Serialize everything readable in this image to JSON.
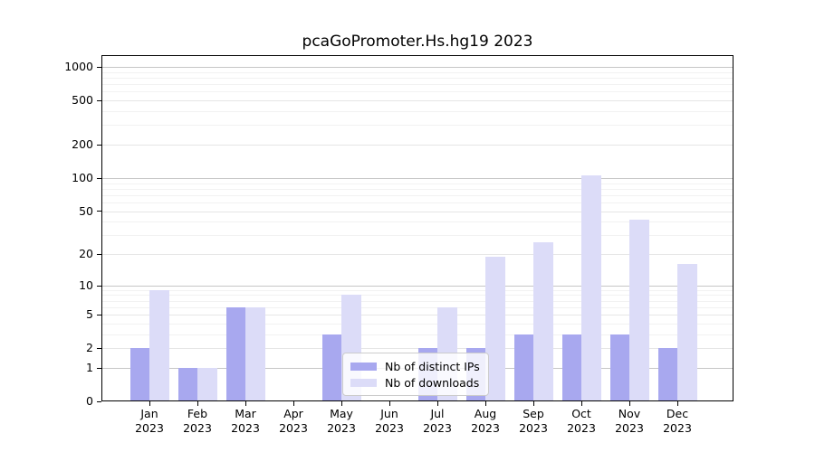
{
  "chart_data": {
    "type": "bar",
    "title": "pcaGoPromoter.Hs.hg19 2023",
    "x_categories": [
      "Jan",
      "Feb",
      "Mar",
      "Apr",
      "May",
      "Jun",
      "Jul",
      "Aug",
      "Sep",
      "Oct",
      "Nov",
      "Dec"
    ],
    "x_year": "2023",
    "series": [
      {
        "name": "Nb of distinct IPs",
        "color": "#a8a8ef",
        "values": [
          2,
          1,
          6,
          0,
          3,
          0,
          2,
          2,
          3,
          3,
          3,
          2
        ]
      },
      {
        "name": "Nb of downloads",
        "color": "#dcdcf8",
        "values": [
          9,
          1,
          6,
          0,
          8,
          0,
          6,
          19,
          26,
          105,
          42,
          16
        ]
      }
    ],
    "y_scale": "log10(value+1)",
    "y_ticks_labeled": [
      0,
      1,
      2,
      5,
      10,
      20,
      50,
      100,
      200,
      500,
      1000
    ],
    "y_ticks_power_of_ten": [
      1,
      10,
      100,
      1000
    ],
    "y_ticks_minor_unlabeled": [
      3,
      4,
      6,
      7,
      8,
      9,
      30,
      40,
      60,
      70,
      80,
      90,
      300,
      400,
      600,
      700,
      800,
      900
    ],
    "ylim": [
      0,
      1276
    ],
    "grid": "horizontal",
    "legend_position": "inside-bottom-center-left"
  }
}
